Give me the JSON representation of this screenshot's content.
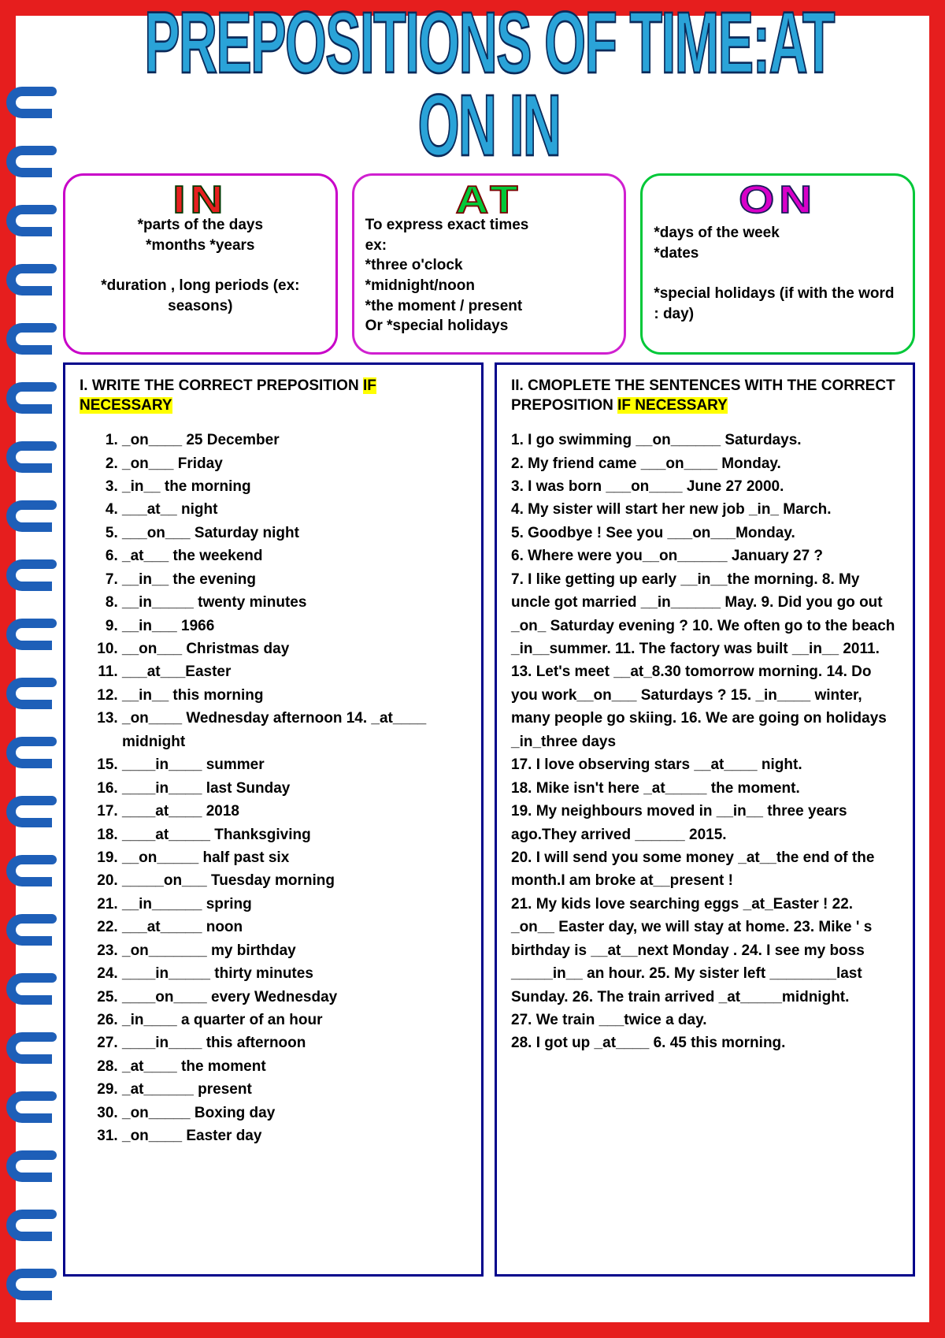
{
  "title": "PREPOSITIONS OF TIME:AT  ON  IN",
  "boxes": {
    "in": {
      "head": "IN",
      "body": "*parts of the days\n*months    *years\n\n*duration , long periods  (ex: seasons)"
    },
    "at": {
      "head": "AT",
      "body": "To express exact times\n                                  ex:\n*three o'clock\n*midnight/noon\n       *the moment / present\nOr *special holidays"
    },
    "on": {
      "head": "ON",
      "body": "*days of the week\n                    *dates\n\n*special holidays (if with the word : day)"
    }
  },
  "exercise1": {
    "title_a": "I. WRITE THE CORRECT PREPOSITION ",
    "title_b": "IF NECESSARY",
    "items": [
      "_on____ 25 December",
      "_on___ Friday",
      "_in__ the morning",
      "___at__ night",
      "___on___ Saturday night",
      "_at___ the weekend",
      "__in__ the evening",
      "__in_____ twenty minutes",
      "__in___ 1966",
      "__on___ Christmas day",
      "___at___Easter",
      "__in__ this morning",
      "_on____ Wednesday afternoon  14. _at____ midnight",
      "____in____ summer",
      "____in____ last Sunday",
      "____at____ 2018",
      "____at_____ Thanksgiving",
      "__on_____ half past six",
      "_____on___ Tuesday morning",
      "__in______ spring",
      "___at_____ noon",
      "_on_______ my birthday",
      "____in_____ thirty minutes",
      "____on____ every Wednesday",
      "_in____ a quarter of an hour",
      "____in____ this afternoon",
      "_at____ the moment",
      "_at______ present",
      "_on_____ Boxing day",
      "_on____ Easter day"
    ]
  },
  "exercise2": {
    "title_a": "II. CMOPLETE THE SENTENCES WITH THE CORRECT PREPOSITION ",
    "title_b": "IF NECESSARY",
    "body": "1. I go swimming __on______ Saturdays.\n2. My friend came ___on____ Monday.\n3. I was born ___on____ June 27 2000.\n4. My sister will start her new job _in_ March.\n5. Goodbye ! See you ___on___Monday.\n6. Where were you__on______ January 27 ?\n7. I like getting up early __in__the morning.  8. My uncle got married __in______ May.           9. Did you go out _on_ Saturday evening ? 10. We often go to the beach _in__summer. 11. The factory was built  __in__ 2011.\n13. Let's meet __at_8.30 tomorrow morning.  14. Do you work__on___ Saturdays ?                     15. _in____ winter, many people go skiing.        16. We are going on holidays _in_three days\n17. I love observing stars __at____ night.\n18. Mike isn't here _at_____ the moment.\n19. My neighbours moved in __in__ three years ago.They arrived ______ 2015.\n20. I will send you some money _at__the end of the month.I am broke at__present !\n21. My kids love searching eggs _at_Easter ! 22. _on__ Easter day, we will stay at home.        23. Mike ' s birthday is __at__next Monday .  24. I  see my boss _____in__ an hour.                     25. My sister left ________last Sunday.          26. The train arrived _at_____midnight.\n27. We train ___twice a day.\n28. I got up _at____ 6. 45 this morning."
  },
  "colors": {
    "red_frame": "#e61e1e",
    "title_fill": "#2aa3d8",
    "title_stroke": "#0a2a5a",
    "box_magenta": "#c800c8",
    "box_green": "#00c838",
    "exercise_border": "#00008b",
    "highlight": "#ffff00",
    "ring": "#1e5fb8"
  }
}
